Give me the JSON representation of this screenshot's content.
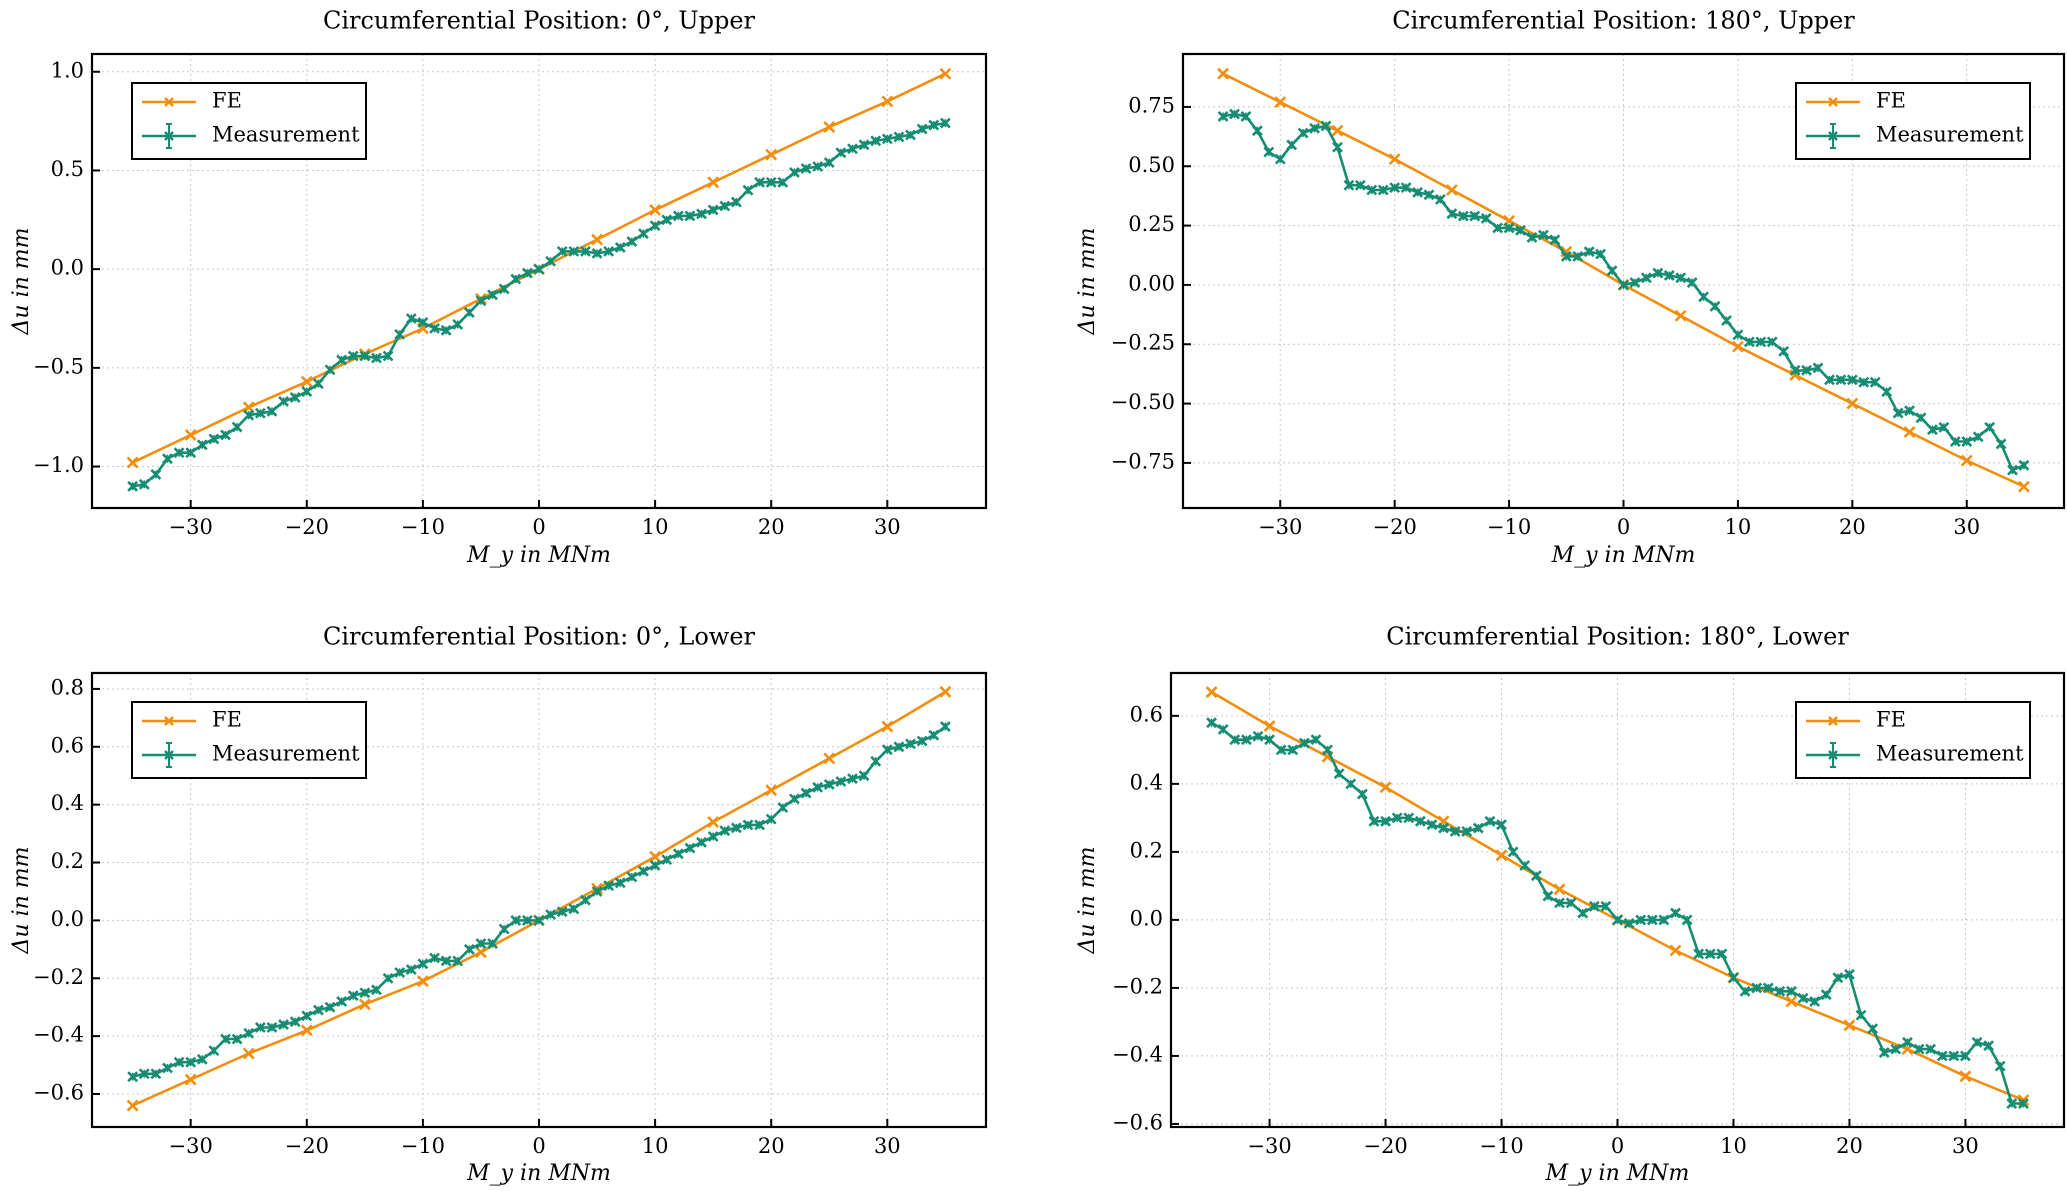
{
  "colors": {
    "fe": "#f28e0c",
    "measurement": "#168d73",
    "grid": "#c8c8c8",
    "frame": "#000000"
  },
  "chart_data": [
    {
      "type": "line",
      "title": "Circumferential Position: 0°, Upper",
      "xlabel": "M_y in MNm",
      "ylabel": "Δu in mm",
      "xlim": [
        -38.5,
        38.5
      ],
      "ylim": [
        -1.21,
        1.09
      ],
      "xticks": [
        -30,
        -20,
        -10,
        0,
        10,
        20,
        30
      ],
      "xtick_labels": [
        "−30",
        "−20",
        "−10",
        "0",
        "10",
        "20",
        "30"
      ],
      "yticks": [
        -1.0,
        -0.5,
        0.0,
        0.5,
        1.0
      ],
      "ytick_labels": [
        "−1.0",
        "−0.5",
        "0.0",
        "0.5",
        "1.0"
      ],
      "grid": true,
      "legend_position": "upper-left",
      "series": [
        {
          "name": "FE",
          "marker": "x",
          "x": [
            -35,
            -30,
            -25,
            -20,
            -15,
            -10,
            -5,
            0,
            5,
            10,
            15,
            20,
            25,
            30,
            35
          ],
          "y": [
            -0.98,
            -0.84,
            -0.7,
            -0.57,
            -0.43,
            -0.3,
            -0.15,
            0.0,
            0.15,
            0.3,
            0.44,
            0.58,
            0.72,
            0.85,
            0.99
          ]
        },
        {
          "name": "Measurement",
          "marker": "x",
          "errorbars": true,
          "x_start": -35,
          "x_step": 1,
          "y": [
            -1.1,
            -1.09,
            -1.04,
            -0.96,
            -0.93,
            -0.93,
            -0.89,
            -0.86,
            -0.84,
            -0.8,
            -0.74,
            -0.73,
            -0.72,
            -0.67,
            -0.65,
            -0.62,
            -0.58,
            -0.51,
            -0.46,
            -0.44,
            -0.44,
            -0.45,
            -0.44,
            -0.33,
            -0.25,
            -0.27,
            -0.3,
            -0.31,
            -0.28,
            -0.22,
            -0.16,
            -0.13,
            -0.1,
            -0.05,
            -0.02,
            0.0,
            0.04,
            0.09,
            0.09,
            0.09,
            0.08,
            0.09,
            0.11,
            0.14,
            0.18,
            0.22,
            0.25,
            0.27,
            0.27,
            0.28,
            0.3,
            0.32,
            0.34,
            0.4,
            0.44,
            0.44,
            0.44,
            0.49,
            0.51,
            0.52,
            0.54,
            0.59,
            0.61,
            0.63,
            0.65,
            0.66,
            0.67,
            0.68,
            0.71,
            0.73,
            0.74
          ]
        }
      ]
    },
    {
      "type": "line",
      "title": "Circumferential Position: 180°, Upper",
      "xlabel": "M_y in MNm",
      "ylabel": "Δu in mm",
      "xlim": [
        -38.5,
        38.5
      ],
      "ylim": [
        -0.94,
        0.973
      ],
      "xticks": [
        -30,
        -20,
        -10,
        0,
        10,
        20,
        30
      ],
      "xtick_labels": [
        "−30",
        "−20",
        "−10",
        "0",
        "10",
        "20",
        "30"
      ],
      "yticks": [
        -0.75,
        -0.5,
        -0.25,
        0.0,
        0.25,
        0.5,
        0.75
      ],
      "ytick_labels": [
        "−0.75",
        "−0.50",
        "−0.25",
        "0.00",
        "0.25",
        "0.50",
        "0.75"
      ],
      "grid": true,
      "legend_position": "upper-right",
      "series": [
        {
          "name": "FE",
          "marker": "x",
          "x": [
            -35,
            -30,
            -25,
            -20,
            -15,
            -10,
            -5,
            0,
            5,
            10,
            15,
            20,
            25,
            30,
            35
          ],
          "y": [
            0.89,
            0.77,
            0.65,
            0.53,
            0.4,
            0.27,
            0.14,
            0.0,
            -0.13,
            -0.26,
            -0.38,
            -0.5,
            -0.62,
            -0.74,
            -0.85
          ]
        },
        {
          "name": "Measurement",
          "marker": "x",
          "errorbars": true,
          "x_start": -35,
          "x_step": 1,
          "y": [
            0.71,
            0.72,
            0.71,
            0.65,
            0.56,
            0.53,
            0.59,
            0.64,
            0.66,
            0.67,
            0.58,
            0.42,
            0.42,
            0.4,
            0.4,
            0.41,
            0.41,
            0.39,
            0.38,
            0.36,
            0.3,
            0.29,
            0.29,
            0.28,
            0.24,
            0.24,
            0.23,
            0.2,
            0.21,
            0.19,
            0.12,
            0.12,
            0.14,
            0.13,
            0.06,
            0.0,
            0.01,
            0.03,
            0.05,
            0.04,
            0.03,
            0.01,
            -0.05,
            -0.09,
            -0.15,
            -0.21,
            -0.24,
            -0.24,
            -0.24,
            -0.28,
            -0.36,
            -0.36,
            -0.35,
            -0.4,
            -0.4,
            -0.4,
            -0.41,
            -0.41,
            -0.45,
            -0.54,
            -0.53,
            -0.56,
            -0.61,
            -0.6,
            -0.66,
            -0.66,
            -0.64,
            -0.6,
            -0.67,
            -0.78,
            -0.76
          ]
        }
      ]
    },
    {
      "type": "line",
      "title": "Circumferential Position: 0°, Lower",
      "xlabel": "M_y in MNm",
      "ylabel": "Δu in mm",
      "xlim": [
        -38.5,
        38.5
      ],
      "ylim": [
        -0.714,
        0.855
      ],
      "xticks": [
        -30,
        -20,
        -10,
        0,
        10,
        20,
        30
      ],
      "xtick_labels": [
        "−30",
        "−20",
        "−10",
        "0",
        "10",
        "20",
        "30"
      ],
      "yticks": [
        -0.6,
        -0.4,
        -0.2,
        0.0,
        0.2,
        0.4,
        0.6,
        0.8
      ],
      "ytick_labels": [
        "−0.6",
        "−0.4",
        "−0.2",
        "0.0",
        "0.2",
        "0.4",
        "0.6",
        "0.8"
      ],
      "grid": true,
      "legend_position": "upper-left",
      "series": [
        {
          "name": "FE",
          "marker": "x",
          "x": [
            -35,
            -30,
            -25,
            -20,
            -15,
            -10,
            -5,
            0,
            5,
            10,
            15,
            20,
            25,
            30,
            35
          ],
          "y": [
            -0.64,
            -0.55,
            -0.46,
            -0.38,
            -0.29,
            -0.21,
            -0.11,
            0.0,
            0.11,
            0.22,
            0.34,
            0.45,
            0.56,
            0.67,
            0.79
          ]
        },
        {
          "name": "Measurement",
          "marker": "x",
          "errorbars": true,
          "x_start": -35,
          "x_step": 1,
          "y": [
            -0.54,
            -0.53,
            -0.53,
            -0.51,
            -0.49,
            -0.49,
            -0.48,
            -0.45,
            -0.41,
            -0.41,
            -0.39,
            -0.37,
            -0.37,
            -0.36,
            -0.35,
            -0.33,
            -0.31,
            -0.3,
            -0.28,
            -0.26,
            -0.25,
            -0.24,
            -0.2,
            -0.18,
            -0.17,
            -0.15,
            -0.13,
            -0.14,
            -0.14,
            -0.1,
            -0.08,
            -0.08,
            -0.03,
            0.0,
            0.0,
            0.0,
            0.02,
            0.03,
            0.04,
            0.07,
            0.1,
            0.12,
            0.13,
            0.15,
            0.17,
            0.19,
            0.21,
            0.23,
            0.25,
            0.27,
            0.29,
            0.31,
            0.32,
            0.33,
            0.33,
            0.35,
            0.39,
            0.42,
            0.44,
            0.46,
            0.47,
            0.48,
            0.49,
            0.5,
            0.55,
            0.59,
            0.6,
            0.61,
            0.62,
            0.64,
            0.67
          ]
        }
      ]
    },
    {
      "type": "line",
      "title": "Circumferential Position: 180°, Lower",
      "xlabel": "M_y in MNm",
      "ylabel": "Δu in mm",
      "xlim": [
        -38.5,
        38.5
      ],
      "ylim": [
        -0.609,
        0.726
      ],
      "xticks": [
        -30,
        -20,
        -10,
        0,
        10,
        20,
        30
      ],
      "xtick_labels": [
        "−30",
        "−20",
        "−10",
        "0",
        "10",
        "20",
        "30"
      ],
      "yticks": [
        -0.6,
        -0.4,
        -0.2,
        0.0,
        0.2,
        0.4,
        0.6
      ],
      "ytick_labels": [
        "−0.6",
        "−0.4",
        "−0.2",
        "0.0",
        "0.2",
        "0.4",
        "0.6"
      ],
      "grid": true,
      "legend_position": "upper-right",
      "series": [
        {
          "name": "FE",
          "marker": "x",
          "x": [
            -35,
            -30,
            -25,
            -20,
            -15,
            -10,
            -5,
            0,
            5,
            10,
            15,
            20,
            25,
            30,
            35
          ],
          "y": [
            0.67,
            0.57,
            0.48,
            0.39,
            0.29,
            0.19,
            0.09,
            0.0,
            -0.09,
            -0.17,
            -0.24,
            -0.31,
            -0.38,
            -0.46,
            -0.53
          ]
        },
        {
          "name": "Measurement",
          "marker": "x",
          "errorbars": true,
          "x_start": -35,
          "x_step": 1,
          "y": [
            0.58,
            0.56,
            0.53,
            0.53,
            0.54,
            0.53,
            0.5,
            0.5,
            0.52,
            0.53,
            0.5,
            0.43,
            0.4,
            0.37,
            0.29,
            0.29,
            0.3,
            0.3,
            0.29,
            0.28,
            0.27,
            0.26,
            0.26,
            0.27,
            0.29,
            0.28,
            0.2,
            0.16,
            0.13,
            0.07,
            0.05,
            0.05,
            0.02,
            0.04,
            0.04,
            0.0,
            -0.01,
            0.0,
            0.0,
            0.0,
            0.02,
            0.0,
            -0.1,
            -0.1,
            -0.1,
            -0.17,
            -0.21,
            -0.2,
            -0.2,
            -0.21,
            -0.21,
            -0.23,
            -0.24,
            -0.22,
            -0.17,
            -0.16,
            -0.28,
            -0.32,
            -0.39,
            -0.38,
            -0.36,
            -0.38,
            -0.38,
            -0.4,
            -0.4,
            -0.4,
            -0.36,
            -0.37,
            -0.43,
            -0.54,
            -0.54
          ]
        }
      ]
    }
  ]
}
